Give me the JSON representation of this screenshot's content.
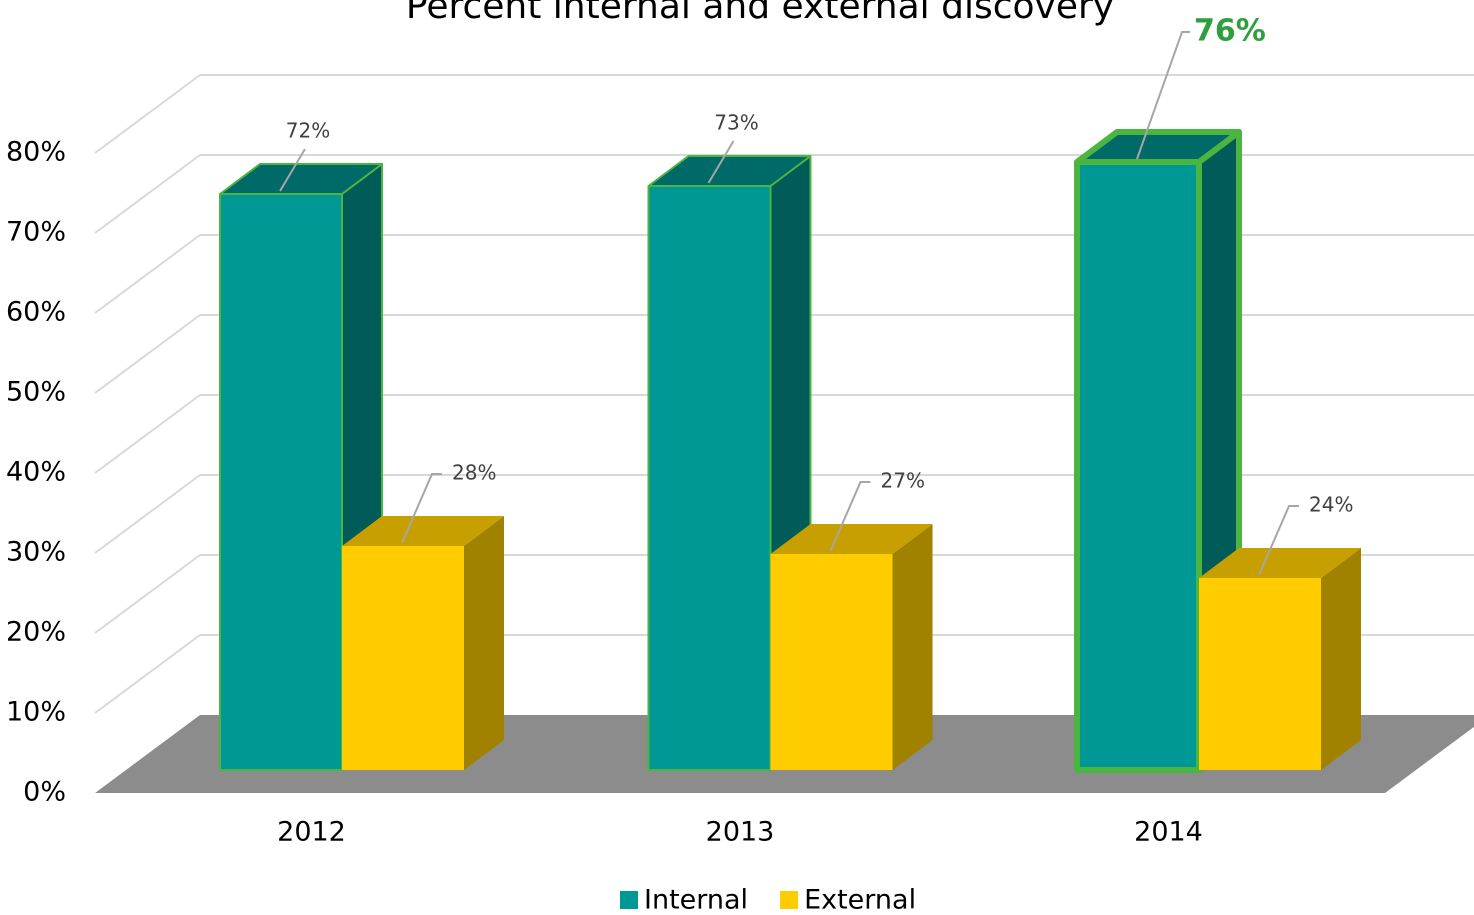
{
  "chart_data": {
    "type": "bar3d",
    "title": "Percent internal and external discovery",
    "categories": [
      "2012",
      "2013",
      "2014"
    ],
    "series": [
      {
        "name": "Internal",
        "color": "#009894",
        "values": [
          72,
          73,
          76
        ],
        "value_labels": [
          "72%",
          "73%",
          "76%"
        ]
      },
      {
        "name": "External",
        "color": "#ffcc00",
        "values": [
          28,
          27,
          24
        ],
        "value_labels": [
          "28%",
          "27%",
          "24%"
        ]
      }
    ],
    "ylim": [
      0,
      80
    ],
    "yticks": [
      {
        "value": 0,
        "label": "0%"
      },
      {
        "value": 10,
        "label": "10%"
      },
      {
        "value": 20,
        "label": "20%"
      },
      {
        "value": 30,
        "label": "30%"
      },
      {
        "value": 40,
        "label": "40%"
      },
      {
        "value": 50,
        "label": "50%"
      },
      {
        "value": 60,
        "label": "60%"
      },
      {
        "value": 70,
        "label": "70%"
      },
      {
        "value": 80,
        "label": "80%"
      }
    ],
    "grid": true,
    "legend": "bottom"
  }
}
